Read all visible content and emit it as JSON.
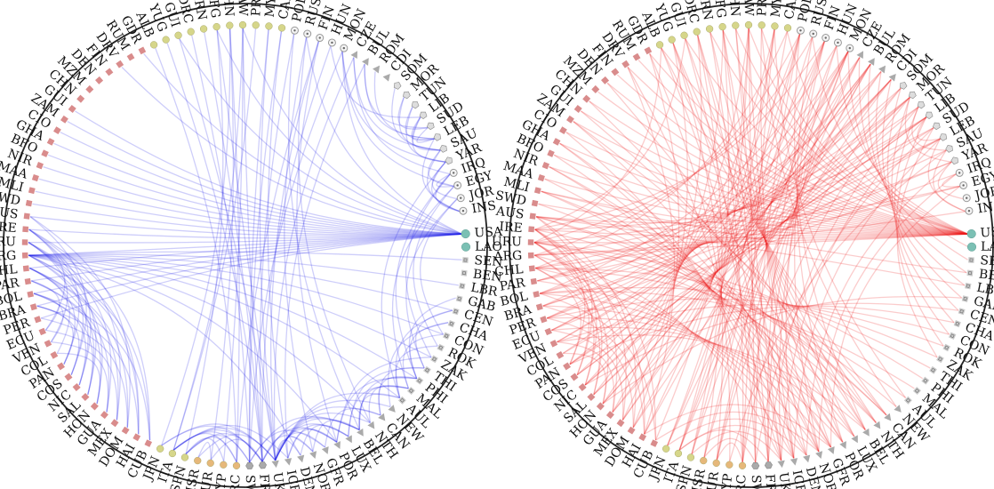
{
  "colors": {
    "left_edges": "#1f1fe8",
    "right_edges": "#ee1515",
    "ring": "#222222",
    "latin_square": "#d98c8c",
    "eastern_circle": "#d6d68a",
    "circle_dot": "#cfcfcf",
    "pentagon": "#dddddd",
    "teal_circle": "#7bc0b4",
    "gray_square": "#cccccc",
    "triangle": "#aaaaaa",
    "orange_circle": "#e6b87a",
    "western_hex": "#aaaaaa"
  },
  "shape_legend": {
    "sq": "square marker",
    "circ": "filled circle marker",
    "dot": "hollow circle with center dot",
    "pent": "pentagon marker",
    "teal": "teal circle marker",
    "gsq": "square marker with inner box",
    "tri": "triangle marker",
    "ocirc": "orange circle marker",
    "hex": "hexagon marker"
  },
  "nodes": [
    {
      "code": "USA",
      "shape": "teal"
    },
    {
      "code": "LAO",
      "shape": "teal"
    },
    {
      "code": "SEN",
      "shape": "gsq"
    },
    {
      "code": "BEN",
      "shape": "gsq"
    },
    {
      "code": "LBR",
      "shape": "gsq"
    },
    {
      "code": "GAB",
      "shape": "gsq"
    },
    {
      "code": "CEN",
      "shape": "gsq"
    },
    {
      "code": "CHA",
      "shape": "gsq"
    },
    {
      "code": "CON",
      "shape": "gsq"
    },
    {
      "code": "ROK",
      "shape": "gsq"
    },
    {
      "code": "ZAK",
      "shape": "gsq"
    },
    {
      "code": "THI",
      "shape": "gsq"
    },
    {
      "code": "PHI",
      "shape": "gsq"
    },
    {
      "code": "MAL",
      "shape": "gsq"
    },
    {
      "code": "AUL",
      "shape": "gsq"
    },
    {
      "code": "NEW",
      "shape": "tri"
    },
    {
      "code": "CAN",
      "shape": "tri"
    },
    {
      "code": "NTH",
      "shape": "tri"
    },
    {
      "code": "BEL",
      "shape": "tri"
    },
    {
      "code": "LUX",
      "shape": "tri"
    },
    {
      "code": "POR",
      "shape": "tri"
    },
    {
      "code": "GFR",
      "shape": "tri"
    },
    {
      "code": "NOR",
      "shape": "tri"
    },
    {
      "code": "DEN",
      "shape": "tri"
    },
    {
      "code": "ICE",
      "shape": "tri"
    },
    {
      "code": "UKG",
      "shape": "tri"
    },
    {
      "code": "FRN",
      "shape": "hex"
    },
    {
      "code": "SWZ",
      "shape": "hex"
    },
    {
      "code": "GRC",
      "shape": "ocirc"
    },
    {
      "code": "CYP",
      "shape": "ocirc"
    },
    {
      "code": "TUR",
      "shape": "ocirc"
    },
    {
      "code": "ISR",
      "shape": "ocirc"
    },
    {
      "code": "SPN",
      "shape": "circ"
    },
    {
      "code": "ITA",
      "shape": "circ"
    },
    {
      "code": "JPN",
      "shape": "circ"
    },
    {
      "code": "CUB",
      "shape": "sq"
    },
    {
      "code": "HAI",
      "shape": "sq"
    },
    {
      "code": "DOM",
      "shape": "sq"
    },
    {
      "code": "MEX",
      "shape": "sq"
    },
    {
      "code": "GUA",
      "shape": "sq"
    },
    {
      "code": "HON",
      "shape": "sq"
    },
    {
      "code": "SAL",
      "shape": "sq"
    },
    {
      "code": "NIC",
      "shape": "sq"
    },
    {
      "code": "COS",
      "shape": "sq"
    },
    {
      "code": "PAN",
      "shape": "sq"
    },
    {
      "code": "COL",
      "shape": "sq"
    },
    {
      "code": "VEN",
      "shape": "sq"
    },
    {
      "code": "ECU",
      "shape": "sq"
    },
    {
      "code": "PER",
      "shape": "sq"
    },
    {
      "code": "BRA",
      "shape": "sq"
    },
    {
      "code": "BOL",
      "shape": "sq"
    },
    {
      "code": "PAR",
      "shape": "sq"
    },
    {
      "code": "CHL",
      "shape": "sq"
    },
    {
      "code": "ARG",
      "shape": "sq"
    },
    {
      "code": "URU",
      "shape": "sq"
    },
    {
      "code": "IRE",
      "shape": "sq"
    },
    {
      "code": "AUS",
      "shape": "sq"
    },
    {
      "code": "SWD",
      "shape": "sq"
    },
    {
      "code": "MLI",
      "shape": "sq"
    },
    {
      "code": "MAA",
      "shape": "sq"
    },
    {
      "code": "NIR",
      "shape": "sq"
    },
    {
      "code": "BFO",
      "shape": "sq"
    },
    {
      "code": "GHA",
      "shape": "sq"
    },
    {
      "code": "CIO",
      "shape": "sq"
    },
    {
      "code": "ZAM",
      "shape": "sq"
    },
    {
      "code": "GUI",
      "shape": "sq"
    },
    {
      "code": "CHN",
      "shape": "sq"
    },
    {
      "code": "MZM",
      "shape": "sq"
    },
    {
      "code": "DEN",
      "shape": "sq"
    },
    {
      "code": "FIN",
      "shape": "sq"
    },
    {
      "code": "DRV",
      "shape": "sq"
    },
    {
      "code": "RUM",
      "shape": "sq"
    },
    {
      "code": "GDR",
      "shape": "sq"
    },
    {
      "code": "ALB",
      "shape": "circ"
    },
    {
      "code": "YUG",
      "shape": "circ"
    },
    {
      "code": "GUI",
      "shape": "circ"
    },
    {
      "code": "DRC",
      "shape": "circ"
    },
    {
      "code": "IRN",
      "shape": "circ"
    },
    {
      "code": "AFG",
      "shape": "circ"
    },
    {
      "code": "CHN",
      "shape": "circ"
    },
    {
      "code": "TAW",
      "shape": "circ"
    },
    {
      "code": "PRK",
      "shape": "circ"
    },
    {
      "code": "MYA",
      "shape": "circ"
    },
    {
      "code": "CAM",
      "shape": "circ"
    },
    {
      "code": "POL",
      "shape": "dot"
    },
    {
      "code": "RUS",
      "shape": "dot"
    },
    {
      "code": "FIN",
      "shape": "dot"
    },
    {
      "code": "HUN",
      "shape": "dot"
    },
    {
      "code": "MON",
      "shape": "dot"
    },
    {
      "code": "CZE",
      "shape": "tri"
    },
    {
      "code": "BUL",
      "shape": "tri"
    },
    {
      "code": "ROM",
      "shape": "tri"
    },
    {
      "code": "CDI",
      "shape": "tri"
    },
    {
      "code": "SOM",
      "shape": "pent"
    },
    {
      "code": "MOR",
      "shape": "pent"
    },
    {
      "code": "TUN",
      "shape": "pent"
    },
    {
      "code": "LIB",
      "shape": "pent"
    },
    {
      "code": "SUD",
      "shape": "pent"
    },
    {
      "code": "LEB",
      "shape": "pent"
    },
    {
      "code": "SAU",
      "shape": "pent"
    },
    {
      "code": "YAR",
      "shape": "pent"
    },
    {
      "code": "IRQ",
      "shape": "dot"
    },
    {
      "code": "EGY",
      "shape": "dot"
    },
    {
      "code": "JOR",
      "shape": "dot"
    },
    {
      "code": "INS",
      "shape": "dot"
    }
  ],
  "left_edges": [
    [
      53,
      2
    ],
    [
      53,
      4
    ],
    [
      53,
      6
    ],
    [
      53,
      8
    ],
    [
      53,
      10
    ],
    [
      53,
      12
    ],
    [
      53,
      14
    ],
    [
      53,
      17
    ],
    [
      53,
      20
    ],
    [
      53,
      23
    ],
    [
      53,
      0
    ],
    [
      52,
      0
    ],
    [
      54,
      0
    ],
    [
      51,
      0
    ],
    [
      55,
      0
    ],
    [
      50,
      0
    ],
    [
      49,
      0
    ],
    [
      56,
      0
    ],
    [
      48,
      0
    ],
    [
      57,
      0
    ],
    [
      35,
      53
    ],
    [
      36,
      53
    ],
    [
      37,
      52
    ],
    [
      38,
      52
    ],
    [
      39,
      51
    ],
    [
      40,
      51
    ],
    [
      41,
      50
    ],
    [
      42,
      50
    ],
    [
      43,
      49
    ],
    [
      44,
      49
    ],
    [
      35,
      50
    ],
    [
      36,
      49
    ],
    [
      37,
      48
    ],
    [
      38,
      47
    ],
    [
      39,
      46
    ],
    [
      40,
      45
    ],
    [
      41,
      54
    ],
    [
      42,
      55
    ],
    [
      43,
      56
    ],
    [
      44,
      52
    ],
    [
      35,
      55
    ],
    [
      36,
      54
    ],
    [
      37,
      56
    ],
    [
      38,
      55
    ],
    [
      39,
      54
    ],
    [
      40,
      53
    ],
    [
      41,
      52
    ],
    [
      42,
      53
    ],
    [
      43,
      54
    ],
    [
      44,
      55
    ],
    [
      46,
      50
    ],
    [
      47,
      51
    ],
    [
      45,
      52
    ],
    [
      46,
      54
    ],
    [
      47,
      55
    ],
    [
      25,
      16
    ],
    [
      25,
      17
    ],
    [
      25,
      18
    ],
    [
      25,
      19
    ],
    [
      25,
      20
    ],
    [
      25,
      21
    ],
    [
      25,
      22
    ],
    [
      25,
      23
    ],
    [
      25,
      15
    ],
    [
      25,
      14
    ],
    [
      26,
      18
    ],
    [
      26,
      20
    ],
    [
      26,
      22
    ],
    [
      27,
      18
    ],
    [
      27,
      21
    ],
    [
      24,
      19
    ],
    [
      24,
      20
    ],
    [
      23,
      19
    ],
    [
      22,
      18
    ],
    [
      21,
      16
    ],
    [
      26,
      33
    ],
    [
      26,
      32
    ],
    [
      25,
      33
    ],
    [
      25,
      34
    ],
    [
      27,
      33
    ],
    [
      28,
      33
    ],
    [
      28,
      32
    ],
    [
      29,
      32
    ],
    [
      30,
      31
    ],
    [
      26,
      30
    ],
    [
      25,
      31
    ],
    [
      24,
      33
    ],
    [
      26,
      34
    ],
    [
      27,
      32
    ],
    [
      18,
      13
    ],
    [
      18,
      12
    ],
    [
      19,
      11
    ],
    [
      19,
      13
    ],
    [
      20,
      12
    ],
    [
      17,
      13
    ],
    [
      18,
      14
    ],
    [
      16,
      12
    ],
    [
      16,
      11
    ],
    [
      20,
      10
    ],
    [
      98,
      96
    ],
    [
      98,
      95
    ],
    [
      99,
      94
    ],
    [
      99,
      96
    ],
    [
      100,
      95
    ],
    [
      97,
      94
    ],
    [
      100,
      96
    ],
    [
      98,
      97
    ],
    [
      99,
      93
    ],
    [
      99,
      104
    ],
    [
      100,
      104
    ],
    [
      101,
      104
    ],
    [
      98,
      104
    ],
    [
      99,
      102
    ],
    [
      100,
      103
    ],
    [
      101,
      102
    ],
    [
      79,
      34
    ],
    [
      80,
      33
    ],
    [
      78,
      32
    ],
    [
      81,
      33
    ],
    [
      79,
      30
    ],
    [
      80,
      26
    ],
    [
      78,
      25
    ],
    [
      82,
      27
    ],
    [
      79,
      28
    ],
    [
      80,
      29
    ],
    [
      84,
      26
    ],
    [
      86,
      25
    ],
    [
      82,
      25
    ],
    [
      85,
      22
    ],
    [
      83,
      24
    ],
    [
      86,
      20
    ],
    [
      84,
      18
    ],
    [
      85,
      17
    ],
    [
      83,
      27
    ],
    [
      86,
      28
    ],
    [
      90,
      97
    ],
    [
      90,
      98
    ],
    [
      89,
      99
    ],
    [
      88,
      100
    ],
    [
      87,
      96
    ],
    [
      91,
      98
    ],
    [
      88,
      102
    ],
    [
      89,
      101
    ],
    [
      87,
      26
    ],
    [
      88,
      27
    ],
    [
      89,
      25
    ],
    [
      90,
      24
    ],
    [
      0,
      70
    ],
    [
      0,
      72
    ],
    [
      0,
      75
    ],
    [
      0,
      78
    ],
    [
      0,
      80
    ],
    [
      0,
      85
    ],
    [
      0,
      88
    ],
    [
      101,
      10
    ],
    [
      102,
      9
    ],
    [
      101,
      12
    ],
    [
      100,
      14
    ],
    [
      102,
      13
    ],
    [
      103,
      11
    ],
    [
      103,
      8
    ],
    [
      5,
      12
    ],
    [
      6,
      14
    ],
    [
      7,
      12
    ],
    [
      8,
      13
    ],
    [
      9,
      14
    ],
    [
      7,
      15
    ],
    [
      6,
      11
    ],
    [
      74,
      26
    ],
    [
      75,
      25
    ],
    [
      76,
      27
    ],
    [
      77,
      26
    ],
    [
      73,
      28
    ],
    [
      60,
      0
    ],
    [
      62,
      0
    ],
    [
      65,
      0
    ],
    [
      58,
      0
    ],
    [
      59,
      0
    ],
    [
      61,
      0
    ],
    [
      63,
      0
    ],
    [
      64,
      0
    ]
  ],
  "right_edges": [
    [
      36,
      70
    ],
    [
      37,
      72
    ],
    [
      38,
      74
    ],
    [
      39,
      76
    ],
    [
      40,
      78
    ],
    [
      41,
      80
    ],
    [
      42,
      82
    ],
    [
      43,
      84
    ],
    [
      44,
      86
    ],
    [
      45,
      88
    ],
    [
      46,
      90
    ],
    [
      47,
      92
    ],
    [
      48,
      94
    ],
    [
      49,
      96
    ],
    [
      50,
      98
    ],
    [
      51,
      100
    ],
    [
      52,
      102
    ],
    [
      53,
      104
    ],
    [
      54,
      73
    ],
    [
      55,
      75
    ],
    [
      35,
      80
    ],
    [
      36,
      82
    ],
    [
      37,
      84
    ],
    [
      38,
      86
    ],
    [
      39,
      88
    ],
    [
      40,
      90
    ],
    [
      41,
      92
    ],
    [
      42,
      94
    ],
    [
      43,
      96
    ],
    [
      44,
      98
    ],
    [
      46,
      18
    ],
    [
      47,
      19
    ],
    [
      48,
      20
    ],
    [
      49,
      21
    ],
    [
      50,
      22
    ],
    [
      51,
      23
    ],
    [
      52,
      24
    ],
    [
      53,
      25
    ],
    [
      54,
      17
    ],
    [
      55,
      16
    ],
    [
      56,
      18
    ],
    [
      57,
      19
    ],
    [
      58,
      20
    ],
    [
      59,
      21
    ],
    [
      60,
      22
    ],
    [
      61,
      23
    ],
    [
      62,
      24
    ],
    [
      63,
      25
    ],
    [
      64,
      16
    ],
    [
      65,
      17
    ],
    [
      35,
      55
    ],
    [
      36,
      54
    ],
    [
      37,
      56
    ],
    [
      38,
      55
    ],
    [
      39,
      54
    ],
    [
      40,
      53
    ],
    [
      41,
      52
    ],
    [
      42,
      53
    ],
    [
      43,
      54
    ],
    [
      44,
      55
    ],
    [
      35,
      50
    ],
    [
      36,
      49
    ],
    [
      37,
      48
    ],
    [
      38,
      47
    ],
    [
      39,
      46
    ],
    [
      40,
      45
    ],
    [
      41,
      54
    ],
    [
      42,
      55
    ],
    [
      43,
      56
    ],
    [
      44,
      52
    ],
    [
      56,
      0
    ],
    [
      57,
      0
    ],
    [
      58,
      0
    ],
    [
      59,
      0
    ],
    [
      60,
      0
    ],
    [
      61,
      0
    ],
    [
      62,
      0
    ],
    [
      63,
      0
    ],
    [
      64,
      0
    ],
    [
      65,
      0
    ],
    [
      66,
      0
    ],
    [
      67,
      0
    ],
    [
      68,
      0
    ],
    [
      69,
      0
    ],
    [
      70,
      0
    ],
    [
      71,
      0
    ],
    [
      72,
      0
    ],
    [
      54,
      0
    ],
    [
      55,
      0
    ],
    [
      53,
      0
    ],
    [
      73,
      26
    ],
    [
      74,
      25
    ],
    [
      75,
      27
    ],
    [
      76,
      24
    ],
    [
      77,
      28
    ],
    [
      78,
      26
    ],
    [
      79,
      25
    ],
    [
      80,
      27
    ],
    [
      81,
      24
    ],
    [
      82,
      28
    ],
    [
      73,
      16
    ],
    [
      74,
      17
    ],
    [
      75,
      18
    ],
    [
      76,
      19
    ],
    [
      77,
      20
    ],
    [
      78,
      21
    ],
    [
      79,
      22
    ],
    [
      80,
      23
    ],
    [
      81,
      15
    ],
    [
      82,
      14
    ],
    [
      83,
      32
    ],
    [
      84,
      33
    ],
    [
      85,
      34
    ],
    [
      86,
      31
    ],
    [
      87,
      30
    ],
    [
      88,
      33
    ],
    [
      89,
      32
    ],
    [
      90,
      31
    ],
    [
      91,
      34
    ],
    [
      92,
      33
    ],
    [
      83,
      52
    ],
    [
      84,
      53
    ],
    [
      85,
      54
    ],
    [
      86,
      55
    ],
    [
      87,
      50
    ],
    [
      88,
      49
    ],
    [
      89,
      48
    ],
    [
      90,
      47
    ],
    [
      91,
      51
    ],
    [
      92,
      46
    ],
    [
      93,
      30
    ],
    [
      94,
      28
    ],
    [
      95,
      26
    ],
    [
      96,
      25
    ],
    [
      97,
      27
    ],
    [
      98,
      24
    ],
    [
      99,
      29
    ],
    [
      100,
      23
    ],
    [
      101,
      22
    ],
    [
      102,
      21
    ],
    [
      93,
      50
    ],
    [
      94,
      51
    ],
    [
      95,
      52
    ],
    [
      96,
      53
    ],
    [
      97,
      54
    ],
    [
      98,
      55
    ],
    [
      99,
      49
    ],
    [
      100,
      48
    ],
    [
      101,
      47
    ],
    [
      102,
      56
    ],
    [
      88,
      1
    ],
    [
      89,
      2
    ],
    [
      90,
      3
    ],
    [
      91,
      4
    ],
    [
      92,
      5
    ],
    [
      93,
      6
    ],
    [
      94,
      7
    ],
    [
      95,
      8
    ],
    [
      96,
      9
    ],
    [
      97,
      10
    ],
    [
      88,
      36
    ],
    [
      89,
      38
    ],
    [
      90,
      40
    ],
    [
      91,
      42
    ],
    [
      92,
      44
    ],
    [
      93,
      37
    ],
    [
      94,
      39
    ],
    [
      95,
      41
    ],
    [
      96,
      43
    ],
    [
      97,
      45
    ],
    [
      0,
      73
    ],
    [
      0,
      75
    ],
    [
      0,
      77
    ],
    [
      0,
      79
    ],
    [
      0,
      81
    ],
    [
      0,
      83
    ],
    [
      0,
      85
    ],
    [
      0,
      87
    ],
    [
      0,
      78
    ],
    [
      0,
      80
    ],
    [
      28,
      70
    ],
    [
      29,
      72
    ],
    [
      30,
      74
    ],
    [
      31,
      76
    ],
    [
      32,
      78
    ],
    [
      33,
      80
    ],
    [
      34,
      82
    ],
    [
      27,
      84
    ],
    [
      26,
      86
    ],
    [
      25,
      88
    ],
    [
      20,
      60
    ],
    [
      21,
      62
    ],
    [
      22,
      64
    ],
    [
      19,
      66
    ],
    [
      18,
      68
    ],
    [
      17,
      58
    ],
    [
      16,
      56
    ],
    [
      15,
      54
    ],
    [
      14,
      52
    ],
    [
      13,
      50
    ],
    [
      5,
      40
    ],
    [
      6,
      42
    ],
    [
      7,
      44
    ],
    [
      8,
      46
    ],
    [
      9,
      48
    ],
    [
      10,
      50
    ],
    [
      11,
      52
    ],
    [
      12,
      54
    ],
    [
      4,
      56
    ],
    [
      3,
      58
    ],
    [
      98,
      104
    ],
    [
      99,
      104
    ],
    [
      100,
      103
    ],
    [
      101,
      102
    ],
    [
      98,
      96
    ],
    [
      99,
      95
    ],
    [
      100,
      94
    ],
    [
      26,
      33
    ],
    [
      25,
      32
    ],
    [
      27,
      31
    ],
    [
      28,
      30
    ],
    [
      24,
      33
    ],
    [
      23,
      34
    ],
    [
      22,
      35
    ],
    [
      21,
      36
    ],
    [
      88,
      26
    ],
    [
      87,
      24
    ],
    [
      86,
      22
    ],
    [
      85,
      20
    ],
    [
      84,
      18
    ],
    [
      89,
      28
    ],
    [
      90,
      30
    ]
  ]
}
